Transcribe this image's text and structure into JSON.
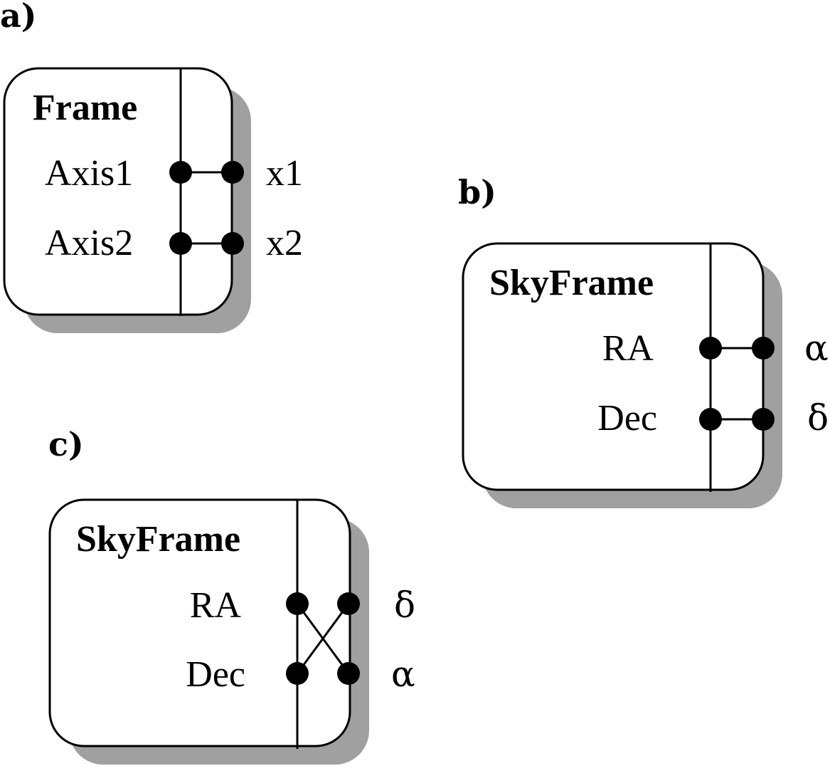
{
  "panels": {
    "a": {
      "label": "a)",
      "title": "Frame",
      "axes": [
        "Axis1",
        "Axis2"
      ],
      "coords": [
        "x1",
        "x2"
      ]
    },
    "b": {
      "label": "b)",
      "title": "SkyFrame",
      "axes": [
        "RA",
        "Dec"
      ],
      "coords": [
        "α",
        "δ"
      ]
    },
    "c": {
      "label": "c)",
      "title": "SkyFrame",
      "axes": [
        "RA",
        "Dec"
      ],
      "coords": [
        "δ",
        "α"
      ]
    }
  }
}
